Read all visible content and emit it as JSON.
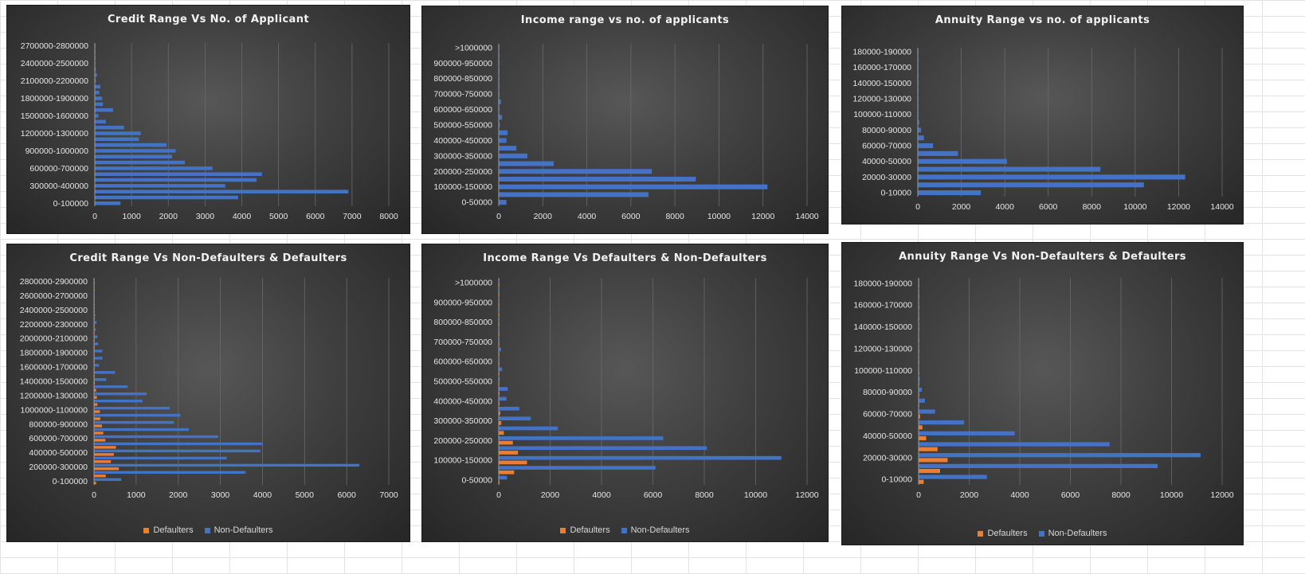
{
  "colors": {
    "non_defaulters": "#4472c4",
    "defaulters": "#ed7d31",
    "gridline": "#6a6a6a",
    "axis": "#9a9a9a",
    "text": "#e6e6e6"
  },
  "chart_data": [
    {
      "type": "bar",
      "orientation": "horizontal",
      "title": "Credit Range Vs No. of Applicant",
      "xlim": [
        0,
        8000
      ],
      "xticks": [
        0,
        1000,
        2000,
        3000,
        4000,
        5000,
        6000,
        7000,
        8000
      ],
      "category_labels": [
        "0-100000",
        "300000-400000",
        "600000-700000",
        "900000-1000000",
        "1200000-1300000",
        "1500000-1600000",
        "1800000-1900000",
        "2100000-2200000",
        "2400000-2500000",
        "2700000-2800000"
      ],
      "grid": true,
      "legend": "none",
      "series": [
        {
          "values": [
            700,
            3900,
            6900,
            3550,
            4400,
            4550,
            3200,
            2450,
            2100,
            2200,
            1950,
            1200,
            1250,
            800,
            300,
            100,
            500,
            220,
            200,
            120,
            150,
            30,
            60,
            30,
            10,
            20,
            5,
            10
          ]
        }
      ]
    },
    {
      "type": "bar",
      "orientation": "horizontal",
      "title": "Income range vs no. of applicants",
      "xlim": [
        0,
        14000
      ],
      "xticks": [
        0,
        2000,
        4000,
        6000,
        8000,
        10000,
        12000,
        14000
      ],
      "category_labels": [
        "0-50000",
        "100000-150000",
        "200000-250000",
        "300000-350000",
        "400000-450000",
        "500000-550000",
        "600000-650000",
        "700000-750000",
        "800000-850000",
        "900000-950000",
        ">1000000"
      ],
      "grid": true,
      "legend": "none",
      "series": [
        {
          "values": [
            350,
            6800,
            12200,
            8950,
            6950,
            2500,
            1300,
            800,
            350,
            400,
            50,
            150,
            20,
            100,
            10,
            10,
            10,
            10,
            5,
            5,
            5
          ]
        }
      ]
    },
    {
      "type": "bar",
      "orientation": "horizontal",
      "title": "Annuity Range vs no. of applicants",
      "xlim": [
        0,
        14000
      ],
      "xticks": [
        0,
        2000,
        4000,
        6000,
        8000,
        10000,
        12000,
        14000
      ],
      "category_labels": [
        "0-10000",
        "20000-30000",
        "40000-50000",
        "60000-70000",
        "80000-90000",
        "100000-110000",
        "120000-130000",
        "140000-150000",
        "160000-170000",
        "180000-190000"
      ],
      "grid": true,
      "legend": "none",
      "series": [
        {
          "values": [
            2900,
            10400,
            12300,
            8400,
            4100,
            1850,
            700,
            280,
            150,
            60,
            30,
            20,
            10,
            10,
            5,
            5,
            5,
            5,
            5
          ]
        }
      ]
    },
    {
      "type": "bar",
      "orientation": "horizontal",
      "title": "Credit Range Vs Non-Defaulters & Defaulters",
      "xlim": [
        0,
        7000
      ],
      "xticks": [
        0,
        1000,
        2000,
        3000,
        4000,
        5000,
        6000,
        7000
      ],
      "category_labels": [
        "0-100000",
        "200000-300000",
        "400000-500000",
        "600000-700000",
        "800000-900000",
        "1000000-1100000",
        "1200000-1300000",
        "1400000-1500000",
        "1600000-1700000",
        "1800000-1900000",
        "2000000-2100000",
        "2200000-2300000",
        "2400000-2500000",
        "2600000-2700000",
        "2800000-2900000"
      ],
      "grid": true,
      "legend": "bottom",
      "series": [
        {
          "name": "Defaulters",
          "color": "#ed7d31",
          "values": [
            50,
            280,
            590,
            400,
            470,
            520,
            270,
            220,
            190,
            150,
            140,
            80,
            70,
            50,
            20,
            10,
            10,
            10,
            5,
            5,
            5,
            5,
            5,
            5,
            5,
            5,
            5,
            5,
            5
          ]
        },
        {
          "name": "Non-Defaulters",
          "color": "#4472c4",
          "values": [
            650,
            3600,
            6300,
            3150,
            3950,
            4000,
            2950,
            2250,
            1900,
            2050,
            1800,
            1150,
            1250,
            800,
            290,
            500,
            120,
            200,
            200,
            100,
            80,
            40,
            60,
            30,
            20,
            10,
            10,
            10,
            5
          ]
        }
      ]
    },
    {
      "type": "bar",
      "orientation": "horizontal",
      "title": "Income Range Vs Defaulters & Non-Defaulters",
      "xlim": [
        0,
        12000
      ],
      "xticks": [
        0,
        2000,
        4000,
        6000,
        8000,
        10000,
        12000
      ],
      "category_labels": [
        "0-50000",
        "100000-150000",
        "200000-250000",
        "300000-350000",
        "400000-450000",
        "500000-550000",
        "600000-650000",
        "700000-750000",
        "800000-850000",
        "900000-950000",
        ">1000000"
      ],
      "grid": true,
      "legend": "bottom",
      "series": [
        {
          "name": "Defaulters",
          "color": "#ed7d31",
          "values": [
            30,
            600,
            1100,
            750,
            550,
            200,
            100,
            60,
            30,
            30,
            10,
            10,
            5,
            5,
            5,
            5,
            5,
            5,
            5,
            5,
            5
          ]
        },
        {
          "name": "Non-Defaulters",
          "color": "#4472c4",
          "values": [
            320,
            6100,
            11000,
            8100,
            6400,
            2300,
            1250,
            800,
            300,
            350,
            40,
            130,
            10,
            90,
            10,
            10,
            10,
            5,
            5,
            5,
            5
          ]
        }
      ]
    },
    {
      "type": "bar",
      "orientation": "horizontal",
      "title": "Annuity Range Vs Non-Defaulters & Defaulters",
      "xlim": [
        0,
        12000
      ],
      "xticks": [
        0,
        2000,
        4000,
        6000,
        8000,
        10000,
        12000
      ],
      "category_labels": [
        "0-10000",
        "20000-30000",
        "40000-50000",
        "60000-70000",
        "80000-90000",
        "100000-110000",
        "120000-130000",
        "140000-150000",
        "160000-170000",
        "180000-190000"
      ],
      "grid": true,
      "legend": "bottom",
      "series": [
        {
          "name": "Defaulters",
          "color": "#ed7d31",
          "values": [
            200,
            850,
            1150,
            750,
            300,
            150,
            60,
            25,
            15,
            10,
            5,
            5,
            5,
            5,
            5,
            5,
            5,
            5,
            5
          ]
        },
        {
          "name": "Non-Defaulters",
          "color": "#4472c4",
          "values": [
            2700,
            9450,
            11150,
            7550,
            3800,
            1800,
            650,
            250,
            130,
            50,
            25,
            15,
            10,
            10,
            5,
            5,
            5,
            5,
            5
          ]
        }
      ]
    }
  ]
}
